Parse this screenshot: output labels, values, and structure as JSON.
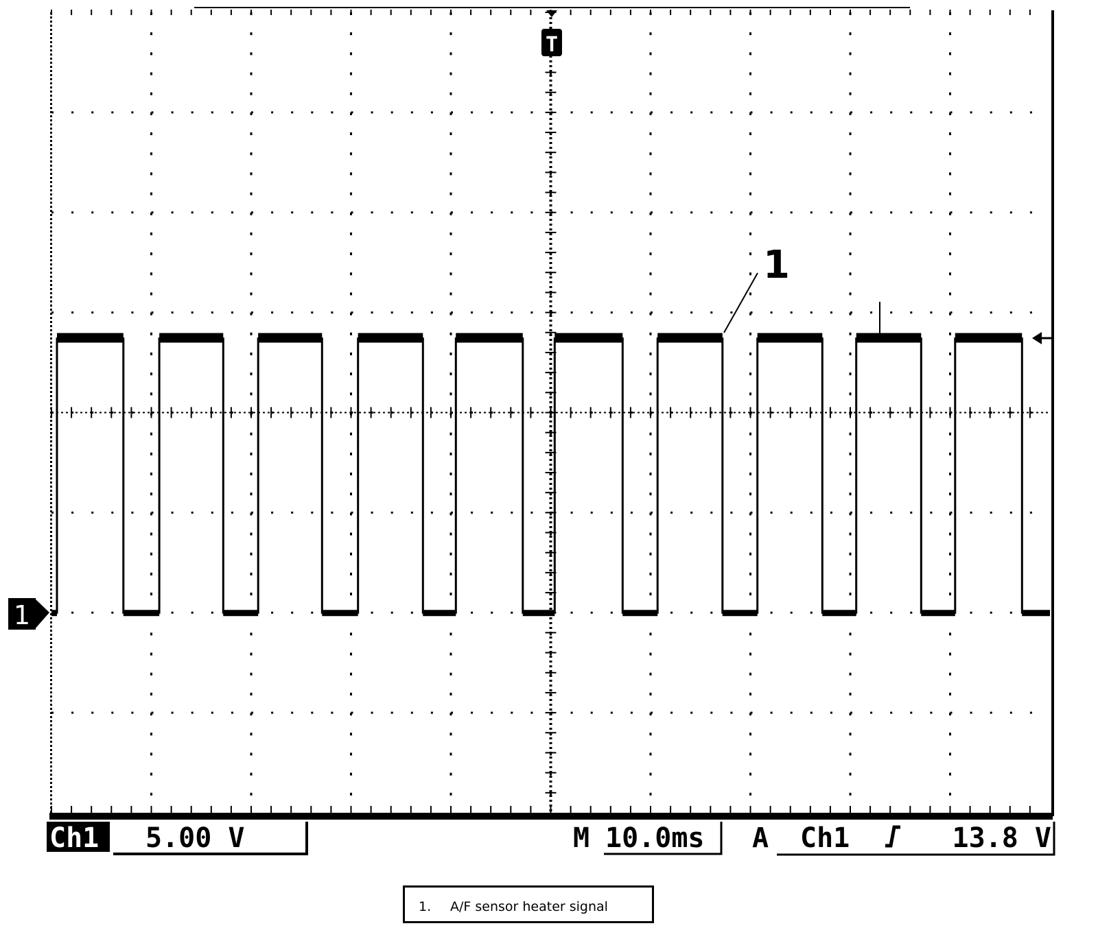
{
  "chart_data": {
    "type": "line",
    "title": "",
    "xlabel": "",
    "ylabel": "",
    "x_unit": "ms",
    "y_unit": "V",
    "xlim": [
      0,
      100
    ],
    "ylim": [
      -10,
      30
    ],
    "x_divisions": 10,
    "y_divisions": 8,
    "grid": true,
    "series": [
      {
        "channel": "Ch1",
        "points": [
          [
            0,
            0
          ],
          [
            0.55,
            0
          ],
          [
            0.55,
            13.7
          ],
          [
            7.2,
            13.7
          ],
          [
            7.2,
            0
          ],
          [
            10.8,
            0
          ],
          [
            10.8,
            13.7
          ],
          [
            17.2,
            13.7
          ],
          [
            17.2,
            0
          ],
          [
            20.7,
            0
          ],
          [
            20.7,
            13.7
          ],
          [
            27.1,
            13.7
          ],
          [
            27.1,
            0
          ],
          [
            30.7,
            0
          ],
          [
            30.7,
            13.7
          ],
          [
            37.2,
            13.7
          ],
          [
            37.2,
            0
          ],
          [
            40.5,
            0
          ],
          [
            40.5,
            13.7
          ],
          [
            47.2,
            13.7
          ],
          [
            47.2,
            0
          ],
          [
            50.4,
            0
          ],
          [
            50.4,
            13.7
          ],
          [
            57.2,
            13.7
          ],
          [
            57.2,
            0
          ],
          [
            60.7,
            0
          ],
          [
            60.7,
            13.7
          ],
          [
            67.2,
            13.7
          ],
          [
            67.2,
            0
          ],
          [
            70.7,
            0
          ],
          [
            70.7,
            13.7
          ],
          [
            77.2,
            13.7
          ],
          [
            77.2,
            0
          ],
          [
            80.6,
            0
          ],
          [
            80.6,
            13.7
          ],
          [
            87.1,
            13.7
          ],
          [
            87.1,
            0
          ],
          [
            90.5,
            0
          ],
          [
            90.5,
            13.7
          ],
          [
            97.2,
            13.7
          ],
          [
            97.2,
            0
          ],
          [
            100,
            0
          ]
        ]
      }
    ],
    "trigger_time": 50,
    "trigger_level": 13.8,
    "annotations": [
      {
        "label": "1",
        "x": 67.2,
        "y": 13.7
      }
    ]
  },
  "readout": {
    "channel": "Ch1",
    "volts_per_div": "5.00 V",
    "timebase_prefix": "M",
    "timebase": "10.0ms",
    "trigger_mode": "A",
    "trigger_source": "Ch1",
    "trigger_slope_icon": "rising-edge",
    "trigger_level": "13.8 V"
  },
  "markers": {
    "ground": "1",
    "trigger": "T",
    "callout": "1"
  },
  "legend": {
    "number": "1.",
    "text": "A/F sensor heater signal"
  }
}
